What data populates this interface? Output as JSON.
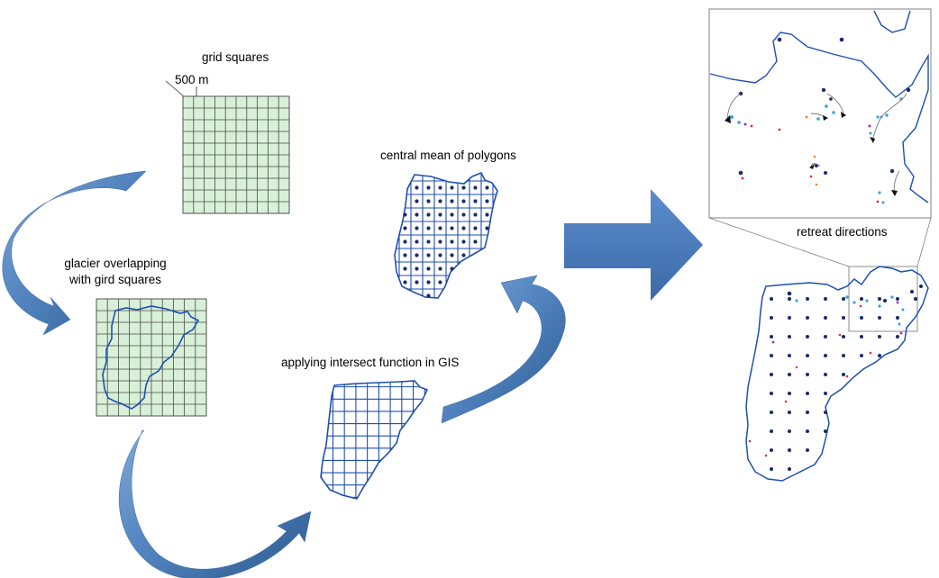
{
  "labels": {
    "grid_squares": "grid squares",
    "scale": "500 m",
    "overlap_line1": "glacier overlapping",
    "overlap_line2": "with gird squares",
    "intersect": "applying intersect function in GIS",
    "central_mean": "central mean of polygons",
    "retreat": "retreat directions"
  },
  "colors": {
    "arrow_fill": "#4f81bd",
    "arrow_shade": "#2d5a8e",
    "grid_fill": "#d8f0d8",
    "grid_line": "#3a3a3a",
    "glacier_outline": "#1f4fb0",
    "dot_navy": "#1a2a6c",
    "dot_light_blue": "#3aa0e0",
    "dot_red": "#e03030",
    "dot_purple": "#a030b0",
    "dot_orange": "#f08020"
  },
  "icons": {
    "process_arrows": "curved-arrow-icon",
    "result_arrow": "right-arrow-icon"
  }
}
